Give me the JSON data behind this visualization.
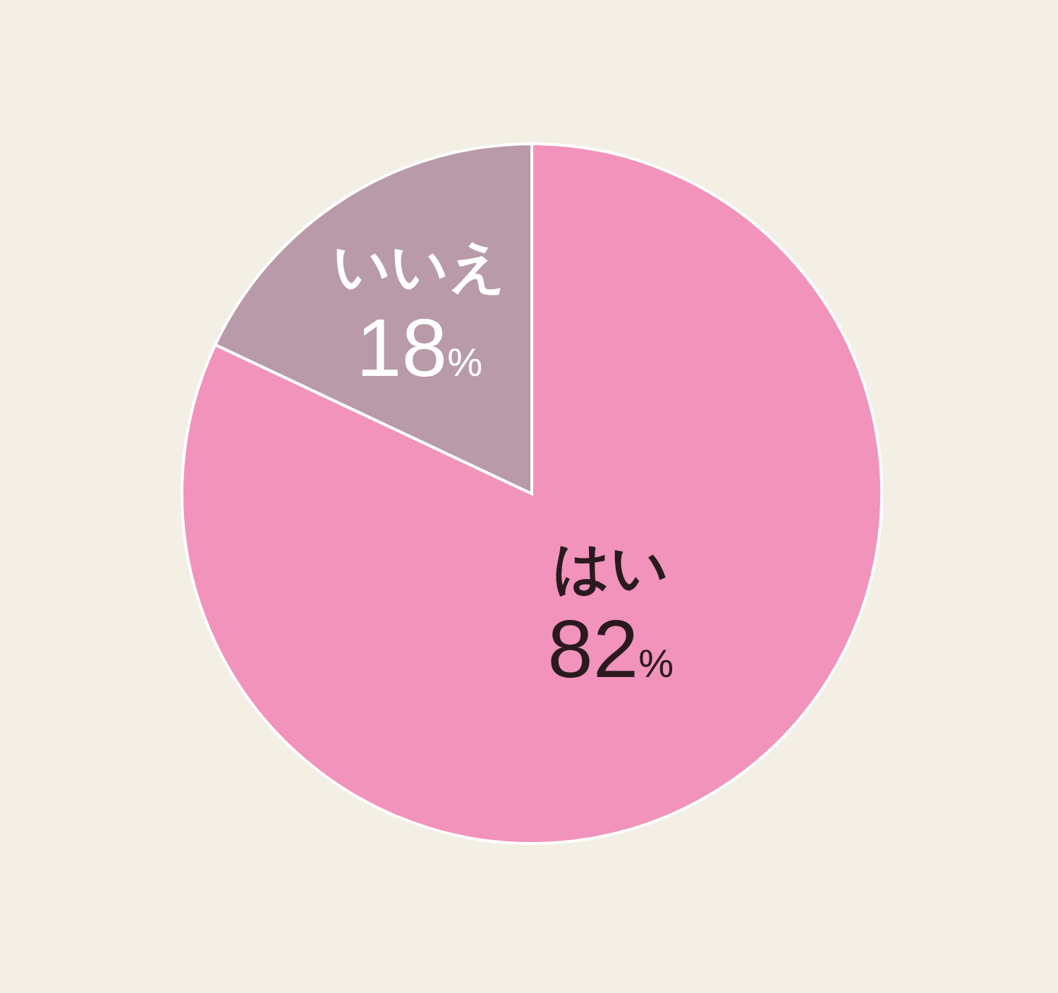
{
  "chart_data": {
    "type": "pie",
    "categories": [
      "はい",
      "いいえ"
    ],
    "values": [
      82,
      18
    ],
    "colors": [
      "#f293bb",
      "#b89aa9"
    ],
    "value_labels": [
      "82%",
      "18%"
    ],
    "legend": false
  }
}
